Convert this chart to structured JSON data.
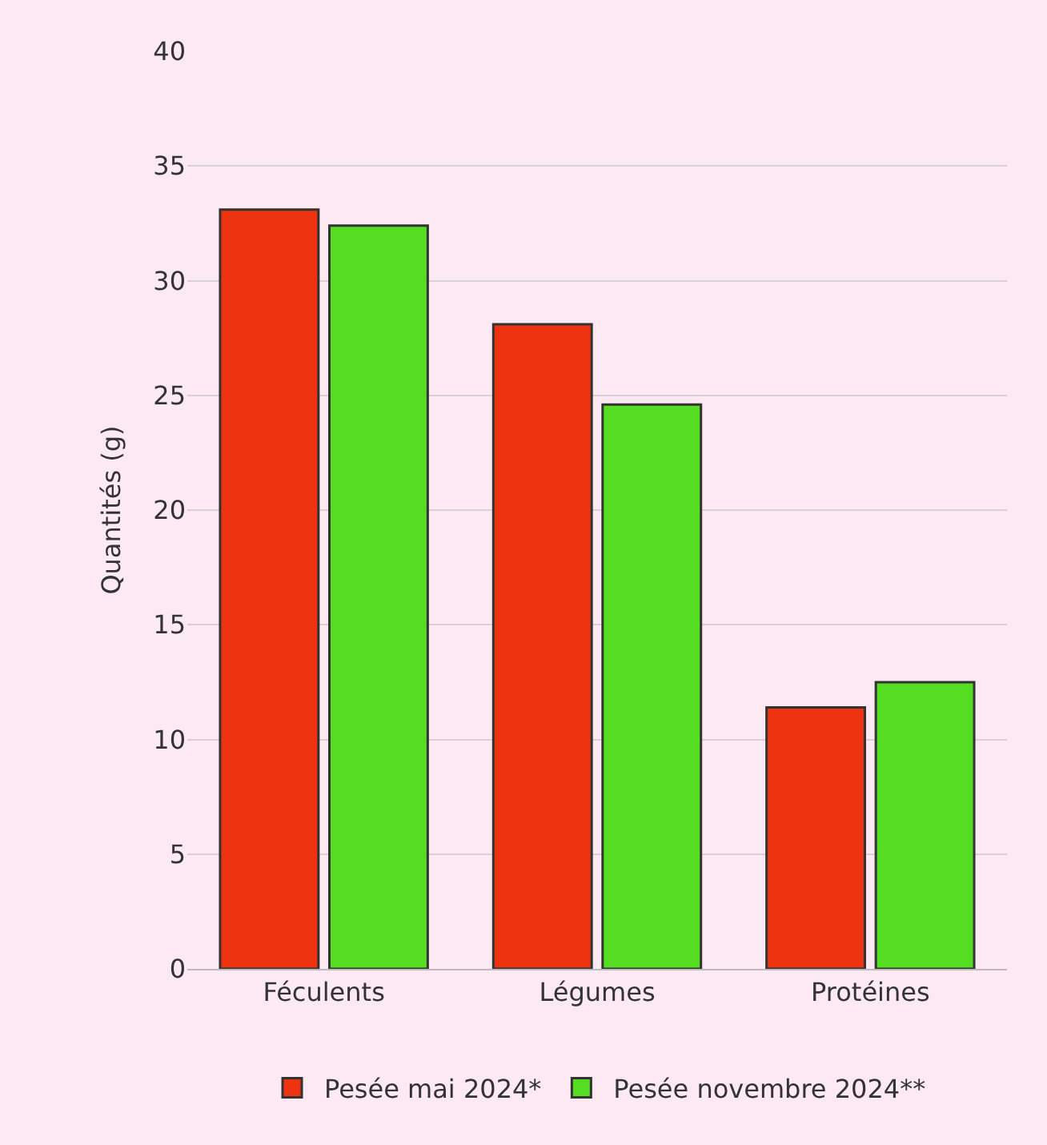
{
  "chart_data": {
    "type": "bar",
    "ylabel": "Quantités (g)",
    "categories": [
      "Féculents",
      "Légumes",
      "Protéines"
    ],
    "series": [
      {
        "name": "Pesée mai 2024*",
        "color": "#ee3311",
        "values": [
          33.1,
          28.1,
          11.4
        ]
      },
      {
        "name": "Pesée novembre 2024**",
        "color": "#55dd22",
        "values": [
          32.4,
          24.6,
          12.5
        ]
      }
    ],
    "ylim": [
      0,
      40
    ],
    "yticks": [
      0,
      5,
      10,
      15,
      20,
      25,
      30,
      35,
      40
    ],
    "grid": "y",
    "legend": "bottom"
  }
}
